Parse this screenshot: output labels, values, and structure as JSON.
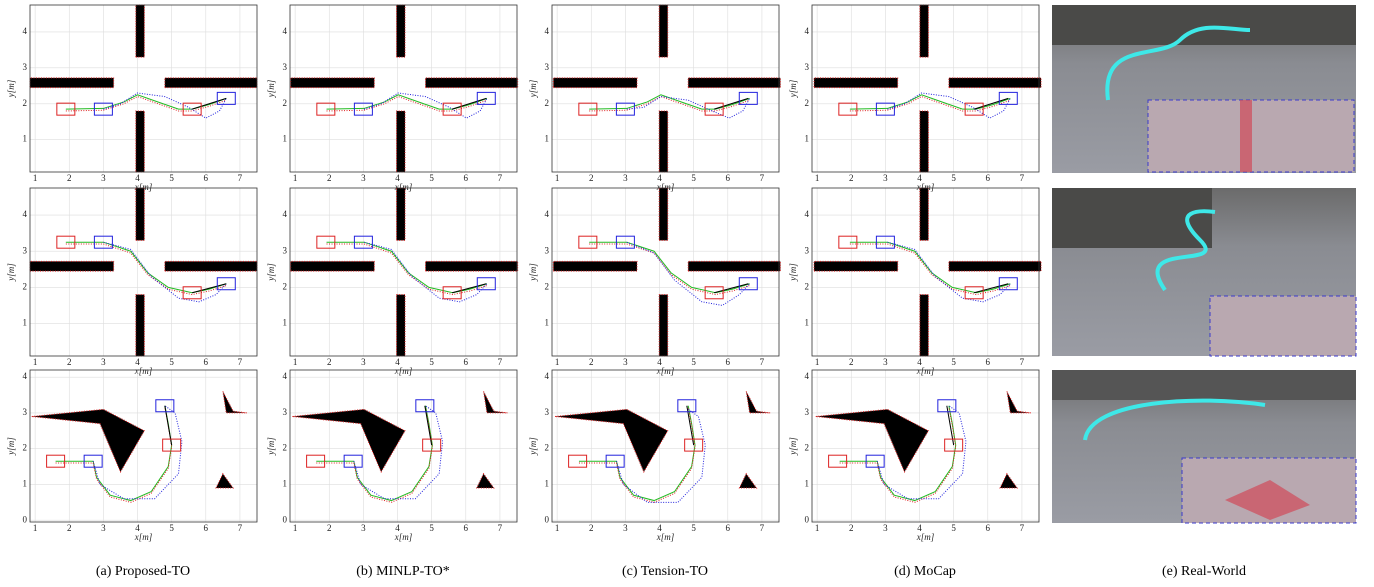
{
  "axes": {
    "xlabel": "x[m]",
    "ylabel": "y[m]",
    "xlim": [
      0.85,
      7.5
    ],
    "xticks": [
      1,
      2,
      3,
      4,
      5,
      6,
      7
    ]
  },
  "rows": [
    {
      "ylim": [
        0.1,
        4.75
      ],
      "yticks": [
        1,
        2,
        3,
        4
      ]
    },
    {
      "ylim": [
        0.1,
        4.75
      ],
      "yticks": [
        1,
        2,
        3,
        4
      ]
    },
    {
      "ylim": [
        -0.05,
        4.2
      ],
      "yticks": [
        0,
        1,
        2,
        3,
        4
      ]
    }
  ],
  "captions": [
    "(a) Proposed-TO",
    "(b) MINLP-TO*",
    "(c) Tension-TO",
    "(d) MoCap",
    "(e) Real-World"
  ]
}
